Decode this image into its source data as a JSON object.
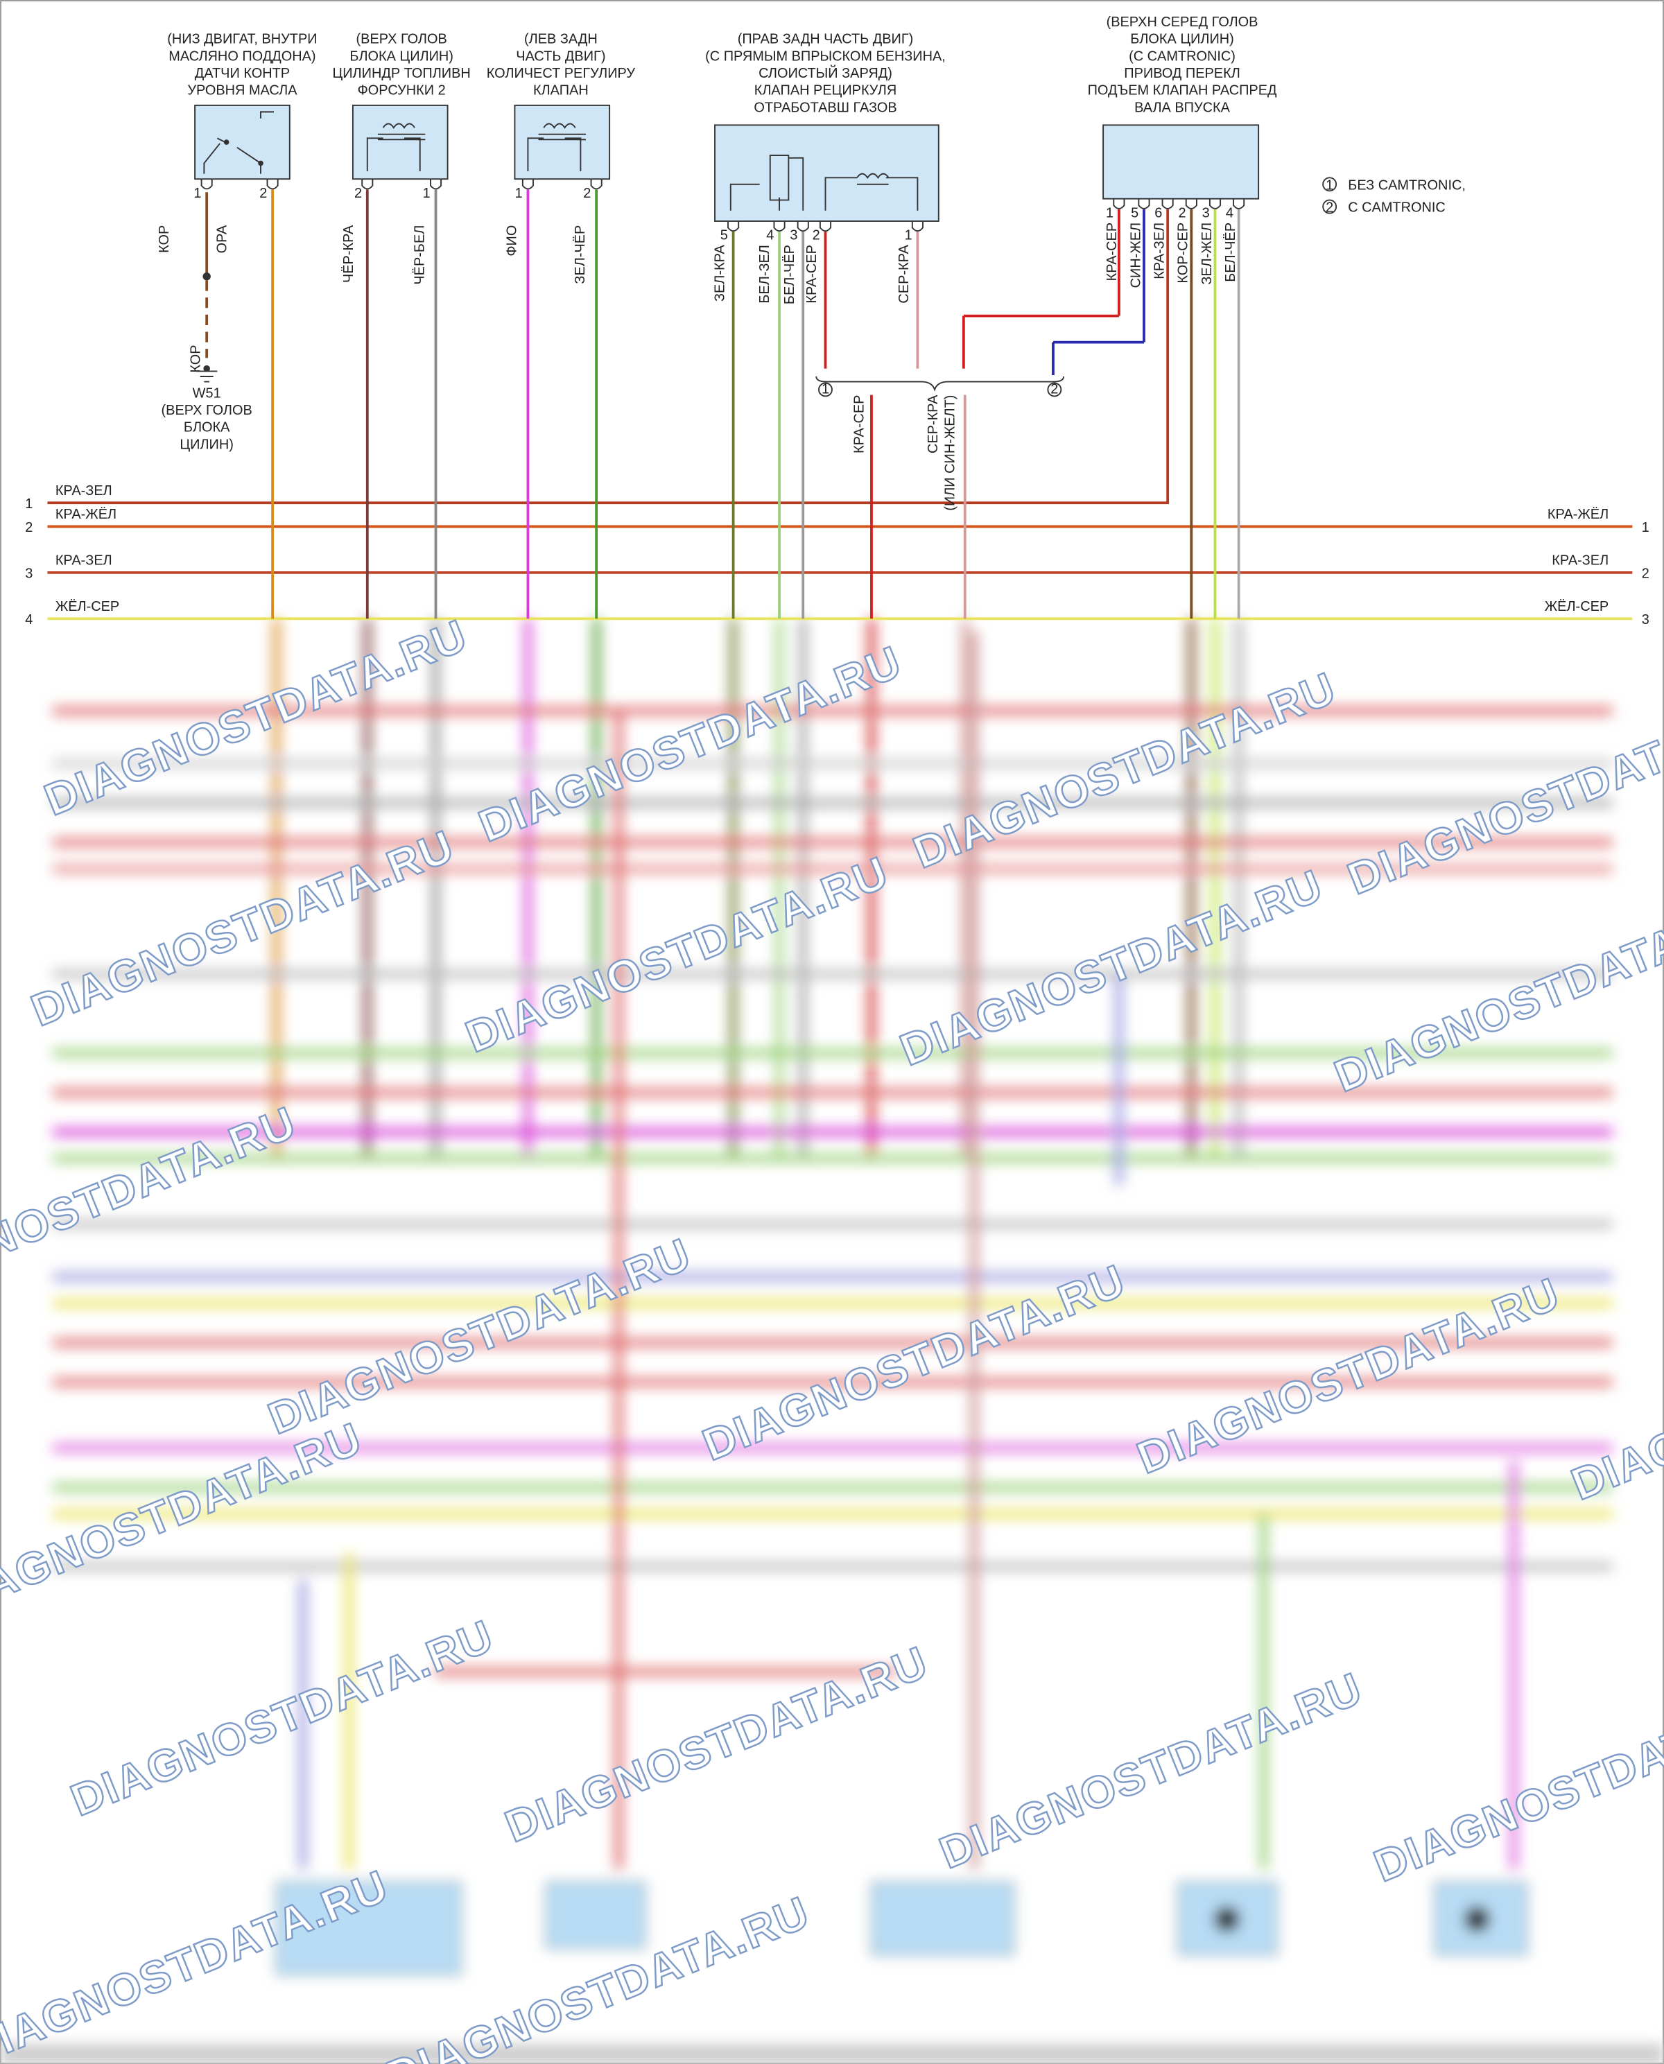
{
  "components": [
    {
      "label": [
        "(НИЗ ДВИГАТ, ВНУТРИ",
        "МАСЛЯНО ПОДДОНА)",
        "ДАТЧИ КОНТР",
        "УРОВНЯ МАСЛА"
      ],
      "pins": [
        "1",
        "2"
      ],
      "wires": [
        "КОР",
        "ОРА"
      ]
    },
    {
      "label": [
        "(ВЕРХ ГОЛОВ",
        "БЛОКА ЦИЛИН)",
        "ЦИЛИНДР ТОПЛИВН",
        "ФОРСУНКИ 2"
      ],
      "pins": [
        "2",
        "1"
      ],
      "wires": [
        "ЧЁР-КРА",
        "ЧЁР-БЕЛ"
      ]
    },
    {
      "label": [
        "(ЛЕВ ЗАДН",
        "ЧАСТЬ ДВИГ)",
        "КОЛИЧЕСТ РЕГУЛИРУ",
        "КЛАПАН"
      ],
      "pins": [
        "1",
        "2"
      ],
      "wires": [
        "ФИО",
        "ЗЕЛ-ЧЁР"
      ]
    },
    {
      "label": [
        "(ПРАВ ЗАДН ЧАСТЬ ДВИГ)",
        "(С ПРЯМЫМ ВПРЫСКОМ БЕНЗИНА,",
        "СЛОИСТЫЙ ЗАРЯД)",
        "КЛАПАН РЕЦИРКУЛЯ",
        "ОТРАБОТАВШ ГАЗОВ"
      ],
      "pins": [
        "5",
        "4",
        "3",
        "2",
        "1"
      ],
      "wires": [
        "ЗЕЛ-КРА",
        "БЕЛ-ЗЕЛ",
        "БЕЛ-ЧЁР",
        "КРА-СЕР",
        "СЕР-КРА"
      ]
    },
    {
      "label": [
        "(ВЕРХН СЕРЕД ГОЛОВ",
        "БЛОКА ЦИЛИН)",
        "(С CAMTRONIC)",
        "ПРИВОД ПЕРЕКЛ",
        "ПОДЪЕМ КЛАПАН РАСПРЕД",
        "ВАЛА ВПУСКА"
      ],
      "pins": [
        "1",
        "5",
        "6",
        "2",
        "3",
        "4"
      ],
      "wires": [
        "КРА-СЕР",
        "СИН-ЖЕЛ",
        "КРА-ЗЕЛ",
        "КОР-СЕР",
        "ЗЕЛ-ЖЕЛ",
        "БЕЛ-ЧЁР"
      ]
    }
  ],
  "ground": {
    "wire": "КОР",
    "label": [
      "W51",
      "(ВЕРХ ГОЛОВ",
      "БЛОКА",
      "ЦИЛИН)"
    ]
  },
  "legend": [
    {
      "mark": "1",
      "text": "БЕЗ CAMTRONIC,"
    },
    {
      "mark": "2",
      "text": "С CAMTRONIC"
    }
  ],
  "splice": {
    "marks": [
      "1",
      "2"
    ],
    "wires": [
      "КРА-СЕР",
      "СЕР-КРА",
      "(ИЛИ СИН-ЖЕЛТ)"
    ]
  },
  "buses": [
    {
      "left_pin": "1",
      "left_label": "КРА-ЗЕЛ"
    },
    {
      "left_pin": "2",
      "left_label": "КРА-ЖЁЛ",
      "right_label": "КРА-ЖЁЛ",
      "right_pin": "1"
    },
    {
      "left_pin": "3",
      "left_label": "КРА-ЗЕЛ",
      "right_label": "КРА-ЗЕЛ",
      "right_pin": "2"
    },
    {
      "left_pin": "4",
      "left_label": "ЖЁЛ-СЕР",
      "right_label": "ЖЁЛ-СЕР",
      "right_pin": "3"
    }
  ],
  "watermark": "DIAGNOSTDATA.RU"
}
